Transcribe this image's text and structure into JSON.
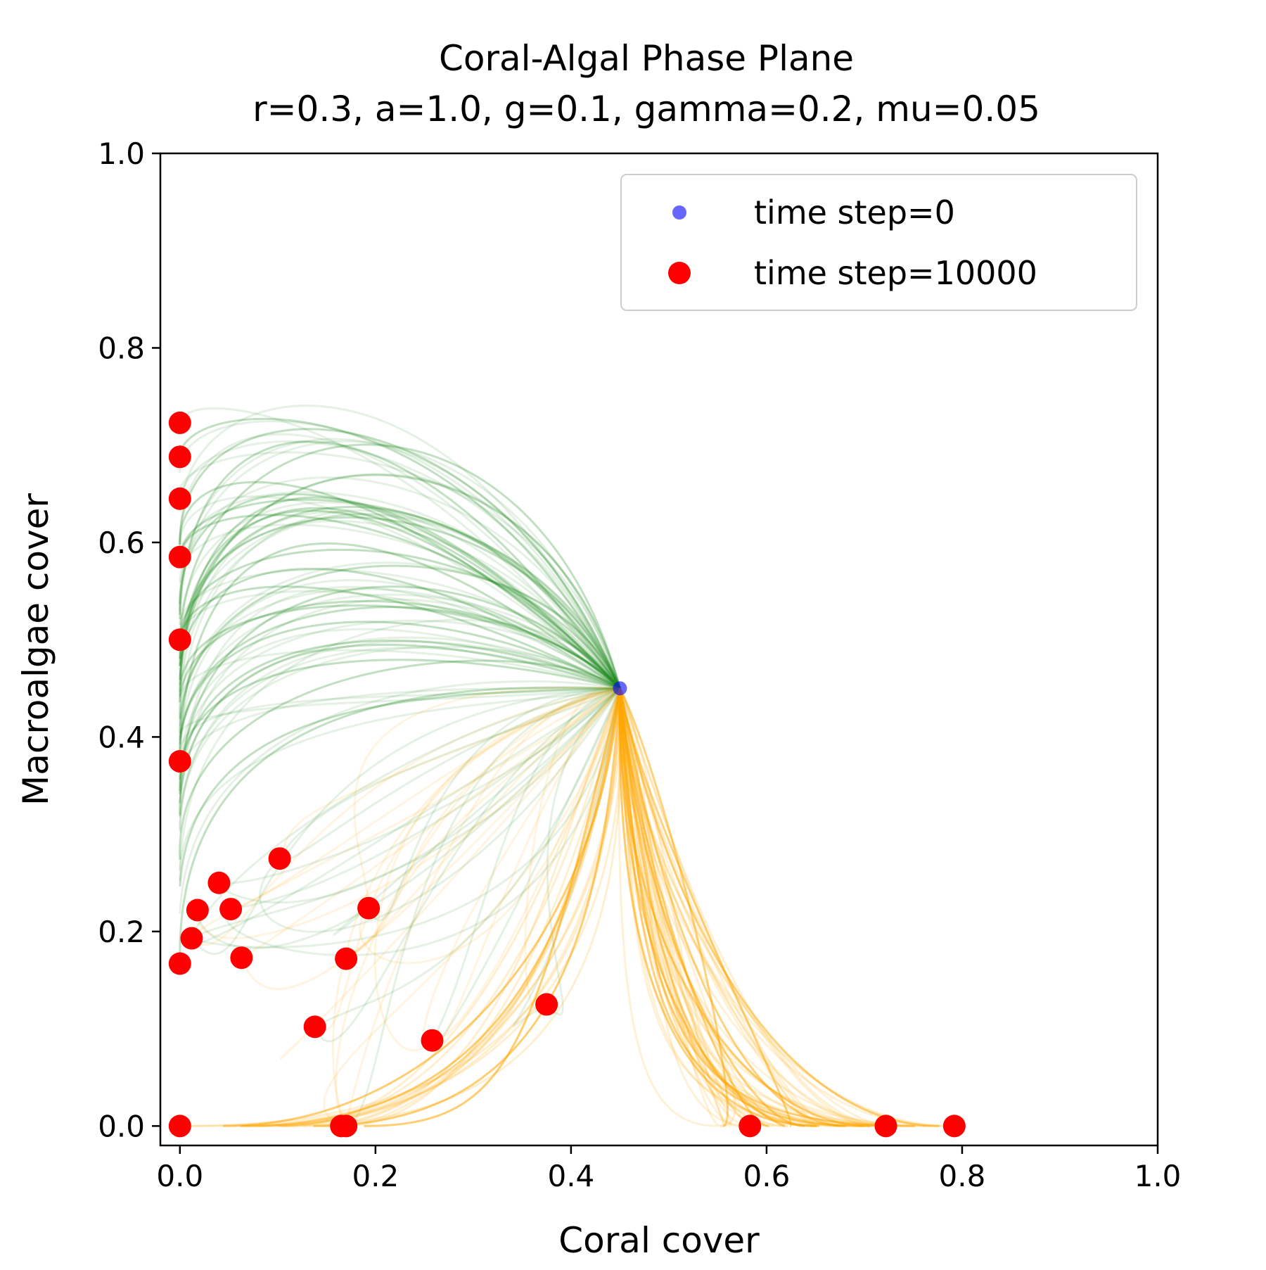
{
  "chart_data": {
    "type": "scatter",
    "title": "Coral-Algal Phase Plane",
    "subtitle": "r=0.3, a=1.0, g=0.1, gamma=0.2, mu=0.05",
    "xlabel": "Coral cover",
    "ylabel": "Macroalgae cover",
    "xlim": [
      -0.02,
      1.0
    ],
    "ylim": [
      -0.02,
      1.0
    ],
    "x_ticks": [
      "0.0",
      "0.2",
      "0.4",
      "0.6",
      "0.8",
      "1.0"
    ],
    "y_ticks": [
      "0.0",
      "0.2",
      "0.4",
      "0.6",
      "0.8",
      "1.0"
    ],
    "grid": false,
    "legend_position": "top-right",
    "colors": {
      "initial": "#0000ff",
      "final": "#ff0000",
      "algae_trajectories": "#228b22",
      "coral_trajectories": "#ffa500"
    },
    "series": [
      {
        "name": "time step=0",
        "color": "#0000ff",
        "points": [
          [
            0.45,
            0.45
          ]
        ]
      },
      {
        "name": "time step=10000",
        "color": "#ff0000",
        "points": [
          [
            0.0,
            0.723
          ],
          [
            0.0,
            0.688
          ],
          [
            0.0,
            0.645
          ],
          [
            0.0,
            0.585
          ],
          [
            0.0,
            0.5
          ],
          [
            0.0,
            0.375
          ],
          [
            0.0,
            0.167
          ],
          [
            0.0,
            0.0
          ],
          [
            0.012,
            0.193
          ],
          [
            0.018,
            0.222
          ],
          [
            0.04,
            0.25
          ],
          [
            0.052,
            0.223
          ],
          [
            0.063,
            0.173
          ],
          [
            0.102,
            0.275
          ],
          [
            0.138,
            0.102
          ],
          [
            0.165,
            0.0
          ],
          [
            0.17,
            0.0
          ],
          [
            0.17,
            0.172
          ],
          [
            0.193,
            0.224
          ],
          [
            0.258,
            0.088
          ],
          [
            0.375,
            0.125
          ],
          [
            0.583,
            0.0
          ],
          [
            0.722,
            0.0
          ],
          [
            0.792,
            0.0
          ]
        ]
      }
    ]
  }
}
